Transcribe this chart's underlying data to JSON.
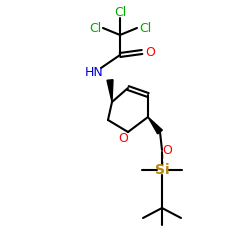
{
  "bg_color": "#ffffff",
  "atom_colors": {
    "C": "#000000",
    "Cl": "#00aa00",
    "O": "#ff0000",
    "N": "#0000cc",
    "Si": "#b8860b",
    "H": "#000000"
  },
  "font_size": 9,
  "figsize": [
    2.5,
    2.5
  ],
  "dpi": 100
}
